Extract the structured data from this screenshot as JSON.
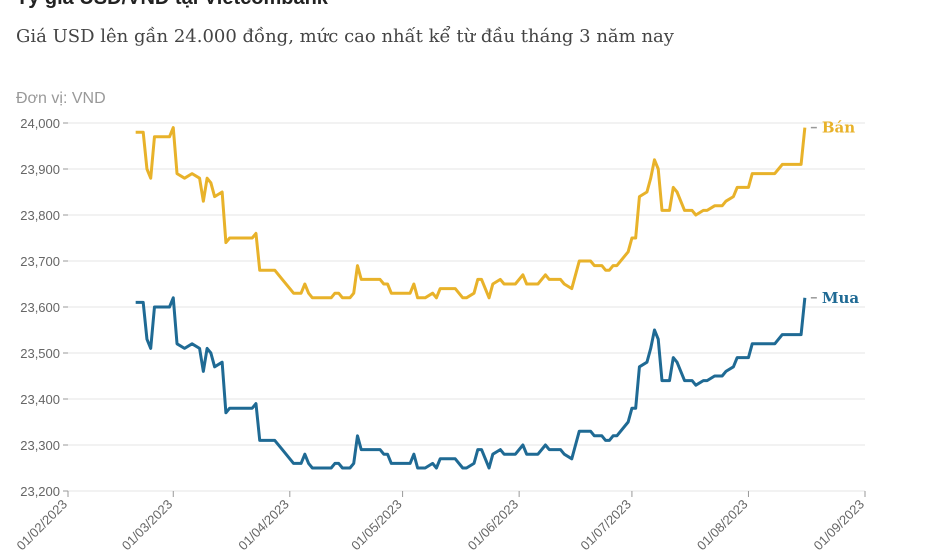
{
  "chart_data": {
    "type": "line",
    "title": "Tỷ giá USD/VND tại Vietcombank",
    "subtitle": "Giá USD lên gần 24.000 đồng, mức cao nhất kể từ đầu tháng 3 năm nay",
    "y_label": "Đơn vị: VND",
    "x": [
      "2023-02-19",
      "2023-02-21",
      "2023-02-22",
      "2023-02-23",
      "2023-02-24",
      "2023-02-28",
      "2023-03-01",
      "2023-03-02",
      "2023-03-04",
      "2023-03-06",
      "2023-03-08",
      "2023-03-09",
      "2023-03-10",
      "2023-03-11",
      "2023-03-12",
      "2023-03-14",
      "2023-03-15",
      "2023-03-16",
      "2023-03-22",
      "2023-03-23",
      "2023-03-24",
      "2023-03-28",
      "2023-03-30",
      "2023-04-01",
      "2023-04-02",
      "2023-04-04",
      "2023-04-05",
      "2023-04-06",
      "2023-04-07",
      "2023-04-12",
      "2023-04-13",
      "2023-04-14",
      "2023-04-15",
      "2023-04-17",
      "2023-04-18",
      "2023-04-19",
      "2023-04-20",
      "2023-04-25",
      "2023-04-26",
      "2023-04-27",
      "2023-04-28",
      "2023-05-03",
      "2023-05-04",
      "2023-05-05",
      "2023-05-07",
      "2023-05-09",
      "2023-05-10",
      "2023-05-11",
      "2023-05-15",
      "2023-05-17",
      "2023-05-18",
      "2023-05-20",
      "2023-05-21",
      "2023-05-22",
      "2023-05-24",
      "2023-05-25",
      "2023-05-27",
      "2023-05-28",
      "2023-05-31",
      "2023-06-02",
      "2023-06-03",
      "2023-06-06",
      "2023-06-08",
      "2023-06-09",
      "2023-06-12",
      "2023-06-13",
      "2023-06-15",
      "2023-06-16",
      "2023-06-17",
      "2023-06-20",
      "2023-06-21",
      "2023-06-23",
      "2023-06-24",
      "2023-06-25",
      "2023-06-26",
      "2023-06-27",
      "2023-06-30",
      "2023-07-01",
      "2023-07-02",
      "2023-07-03",
      "2023-07-05",
      "2023-07-06",
      "2023-07-07",
      "2023-07-08",
      "2023-07-09",
      "2023-07-11",
      "2023-07-12",
      "2023-07-13",
      "2023-07-15",
      "2023-07-17",
      "2023-07-18",
      "2023-07-20",
      "2023-07-21",
      "2023-07-23",
      "2023-07-25",
      "2023-07-26",
      "2023-07-28",
      "2023-07-29",
      "2023-08-01",
      "2023-08-02",
      "2023-08-04",
      "2023-08-08",
      "2023-08-09",
      "2023-08-10",
      "2023-08-15",
      "2023-08-16"
    ],
    "series": [
      {
        "name": "Bán",
        "color": "#e8b22a",
        "values": [
          23980,
          23980,
          23900,
          23880,
          23970,
          23970,
          23990,
          23890,
          23880,
          23890,
          23880,
          23830,
          23880,
          23870,
          23840,
          23850,
          23740,
          23750,
          23750,
          23760,
          23680,
          23680,
          23660,
          23640,
          23630,
          23630,
          23650,
          23630,
          23620,
          23620,
          23630,
          23630,
          23620,
          23620,
          23630,
          23690,
          23660,
          23660,
          23650,
          23650,
          23630,
          23630,
          23650,
          23620,
          23620,
          23630,
          23620,
          23640,
          23640,
          23620,
          23620,
          23630,
          23660,
          23660,
          23620,
          23650,
          23660,
          23650,
          23650,
          23670,
          23650,
          23650,
          23670,
          23660,
          23660,
          23650,
          23640,
          23670,
          23700,
          23700,
          23690,
          23690,
          23680,
          23680,
          23690,
          23690,
          23720,
          23750,
          23750,
          23840,
          23850,
          23880,
          23920,
          23900,
          23810,
          23810,
          23860,
          23850,
          23810,
          23810,
          23800,
          23810,
          23810,
          23820,
          23820,
          23830,
          23840,
          23860,
          23860,
          23890,
          23890,
          23890,
          23900,
          23910,
          23910,
          23990
        ]
      },
      {
        "name": "Mua",
        "color": "#1f6a94",
        "values": [
          23610,
          23610,
          23530,
          23510,
          23600,
          23600,
          23620,
          23520,
          23510,
          23520,
          23510,
          23460,
          23510,
          23500,
          23470,
          23480,
          23370,
          23380,
          23380,
          23390,
          23310,
          23310,
          23290,
          23270,
          23260,
          23260,
          23280,
          23260,
          23250,
          23250,
          23260,
          23260,
          23250,
          23250,
          23260,
          23320,
          23290,
          23290,
          23280,
          23280,
          23260,
          23260,
          23280,
          23250,
          23250,
          23260,
          23250,
          23270,
          23270,
          23250,
          23250,
          23260,
          23290,
          23290,
          23250,
          23280,
          23290,
          23280,
          23280,
          23300,
          23280,
          23280,
          23300,
          23290,
          23290,
          23280,
          23270,
          23300,
          23330,
          23330,
          23320,
          23320,
          23310,
          23310,
          23320,
          23320,
          23350,
          23380,
          23380,
          23470,
          23480,
          23510,
          23550,
          23530,
          23440,
          23440,
          23490,
          23480,
          23440,
          23440,
          23430,
          23440,
          23440,
          23450,
          23450,
          23460,
          23470,
          23490,
          23490,
          23520,
          23520,
          23520,
          23530,
          23540,
          23540,
          23620
        ]
      }
    ],
    "xlim": [
      "2023-02-01",
      "2023-09-01"
    ],
    "xticks": [
      {
        "value": "2023-02-01",
        "label": "01/02/2023"
      },
      {
        "value": "2023-03-01",
        "label": "01/03/2023"
      },
      {
        "value": "2023-04-01",
        "label": "01/04/2023"
      },
      {
        "value": "2023-05-01",
        "label": "01/05/2023"
      },
      {
        "value": "2023-06-01",
        "label": "01/06/2023"
      },
      {
        "value": "2023-07-01",
        "label": "01/07/2023"
      },
      {
        "value": "2023-08-01",
        "label": "01/08/2023"
      },
      {
        "value": "2023-09-01",
        "label": "01/09/2023"
      }
    ],
    "ylim": [
      23200,
      24000
    ],
    "yticks": [
      {
        "value": 23200,
        "label": "23,200"
      },
      {
        "value": 23300,
        "label": "23,300"
      },
      {
        "value": 23400,
        "label": "23,400"
      },
      {
        "value": 23500,
        "label": "23,500"
      },
      {
        "value": 23600,
        "label": "23,600"
      },
      {
        "value": 23700,
        "label": "23,700"
      },
      {
        "value": 23800,
        "label": "23,800"
      },
      {
        "value": 23900,
        "label": "23,900"
      },
      {
        "value": 24000,
        "label": "24,000"
      }
    ],
    "grid": true
  }
}
